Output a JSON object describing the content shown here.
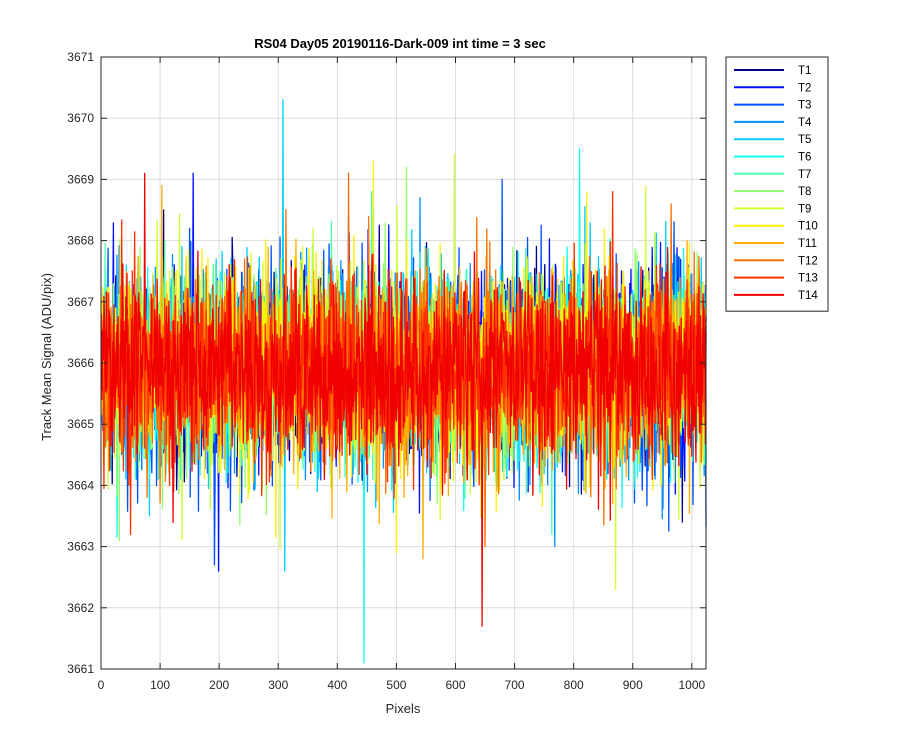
{
  "chart_data": {
    "type": "line",
    "title": "RS04 Day05 20190116-Dark-009 int time = 3 sec",
    "xlabel": "Pixels",
    "ylabel": "Track Mean Signal (ADU/pix)",
    "xlim": [
      0,
      1024
    ],
    "ylim": [
      3661,
      3671
    ],
    "xticks": [
      0,
      100,
      200,
      300,
      400,
      500,
      600,
      700,
      800,
      900,
      1000
    ],
    "yticks": [
      3661,
      3662,
      3663,
      3664,
      3665,
      3666,
      3667,
      3668,
      3669,
      3670,
      3671
    ],
    "grid": true,
    "legend_position": "outside-top-right",
    "x": "pixel index 1 to 1024",
    "series": [
      {
        "name": "T1",
        "color": "#00008F",
        "mean": 3665.9,
        "std": 0.75,
        "min": 3663.4,
        "max": 3668.5
      },
      {
        "name": "T2",
        "color": "#0010FF",
        "mean": 3665.9,
        "std": 0.8,
        "min": 3662.6,
        "max": 3669.1
      },
      {
        "name": "T3",
        "color": "#0050FF",
        "mean": 3665.9,
        "std": 0.8,
        "min": 3662.7,
        "max": 3669.0
      },
      {
        "name": "T4",
        "color": "#0090FF",
        "mean": 3665.9,
        "std": 0.75,
        "min": 3663.0,
        "max": 3668.7
      },
      {
        "name": "T5",
        "color": "#00CFFF",
        "mean": 3665.9,
        "std": 0.8,
        "min": 3662.6,
        "max": 3670.3
      },
      {
        "name": "T6",
        "color": "#10FFEF",
        "mean": 3665.9,
        "std": 0.75,
        "min": 3661.1,
        "max": 3669.5
      },
      {
        "name": "T7",
        "color": "#50FFAF",
        "mean": 3665.9,
        "std": 0.75,
        "min": 3663.2,
        "max": 3668.8
      },
      {
        "name": "T8",
        "color": "#90FF6F",
        "mean": 3665.9,
        "std": 0.75,
        "min": 3663.1,
        "max": 3669.2
      },
      {
        "name": "T9",
        "color": "#CFFF30",
        "mean": 3665.9,
        "std": 0.8,
        "min": 3662.3,
        "max": 3669.4
      },
      {
        "name": "T10",
        "color": "#FFEF00",
        "mean": 3665.9,
        "std": 0.8,
        "min": 3662.9,
        "max": 3669.3
      },
      {
        "name": "T11",
        "color": "#FFAF00",
        "mean": 3665.9,
        "std": 0.75,
        "min": 3662.8,
        "max": 3668.9
      },
      {
        "name": "T12",
        "color": "#FF7000",
        "mean": 3665.9,
        "std": 0.75,
        "min": 3663.0,
        "max": 3669.1
      },
      {
        "name": "T13",
        "color": "#FF3000",
        "mean": 3665.9,
        "std": 0.75,
        "min": 3663.2,
        "max": 3668.8
      },
      {
        "name": "T14",
        "color": "#F00000",
        "mean": 3665.9,
        "std": 0.75,
        "min": 3661.7,
        "max": 3669.1
      }
    ]
  }
}
